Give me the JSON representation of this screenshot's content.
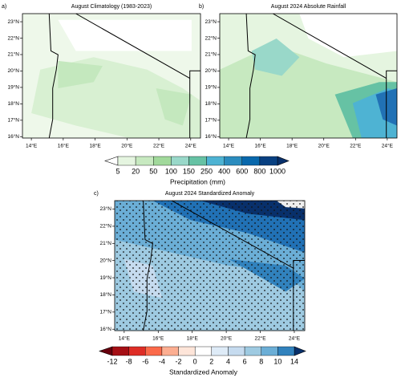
{
  "panels": [
    {
      "label": "a)",
      "title": "August Climatology (1983-2023)",
      "lon_ticks": [
        "14°E",
        "16°E",
        "18°E",
        "20°E",
        "22°E",
        "24°E"
      ],
      "lat_ticks": [
        "23°N",
        "22°N",
        "21°N",
        "20°N",
        "19°N",
        "18°N",
        "17°N",
        "16°N"
      ]
    },
    {
      "label": "b)",
      "title": "August 2024 Absolute Rainfall",
      "lon_ticks": [
        "14°E",
        "16°E",
        "18°E",
        "20°E",
        "22°E",
        "24°E"
      ],
      "lat_ticks": [
        "23°N",
        "22°N",
        "21°N",
        "20°N",
        "19°N",
        "18°N",
        "17°N",
        "16°N"
      ]
    },
    {
      "label": "c)",
      "title": "August 2024 Standardized Anomaly",
      "lon_ticks": [
        "14°E",
        "16°E",
        "18°E",
        "20°E",
        "22°E",
        "24°E"
      ],
      "lat_ticks": [
        "23°N",
        "22°N",
        "21°N",
        "20°N",
        "19°N",
        "18°N",
        "17°N",
        "16°N"
      ]
    }
  ],
  "precip_colorbar": {
    "labels": [
      5,
      20,
      50,
      100,
      150,
      250,
      400,
      600,
      800,
      1000
    ],
    "title": "Precipitation (mm)"
  },
  "anomaly_colorbar": {
    "labels": [
      -12,
      -8,
      -6,
      -4,
      -2,
      0,
      2,
      4,
      6,
      8,
      10,
      14
    ],
    "title": "Standardized Anomaly"
  }
}
